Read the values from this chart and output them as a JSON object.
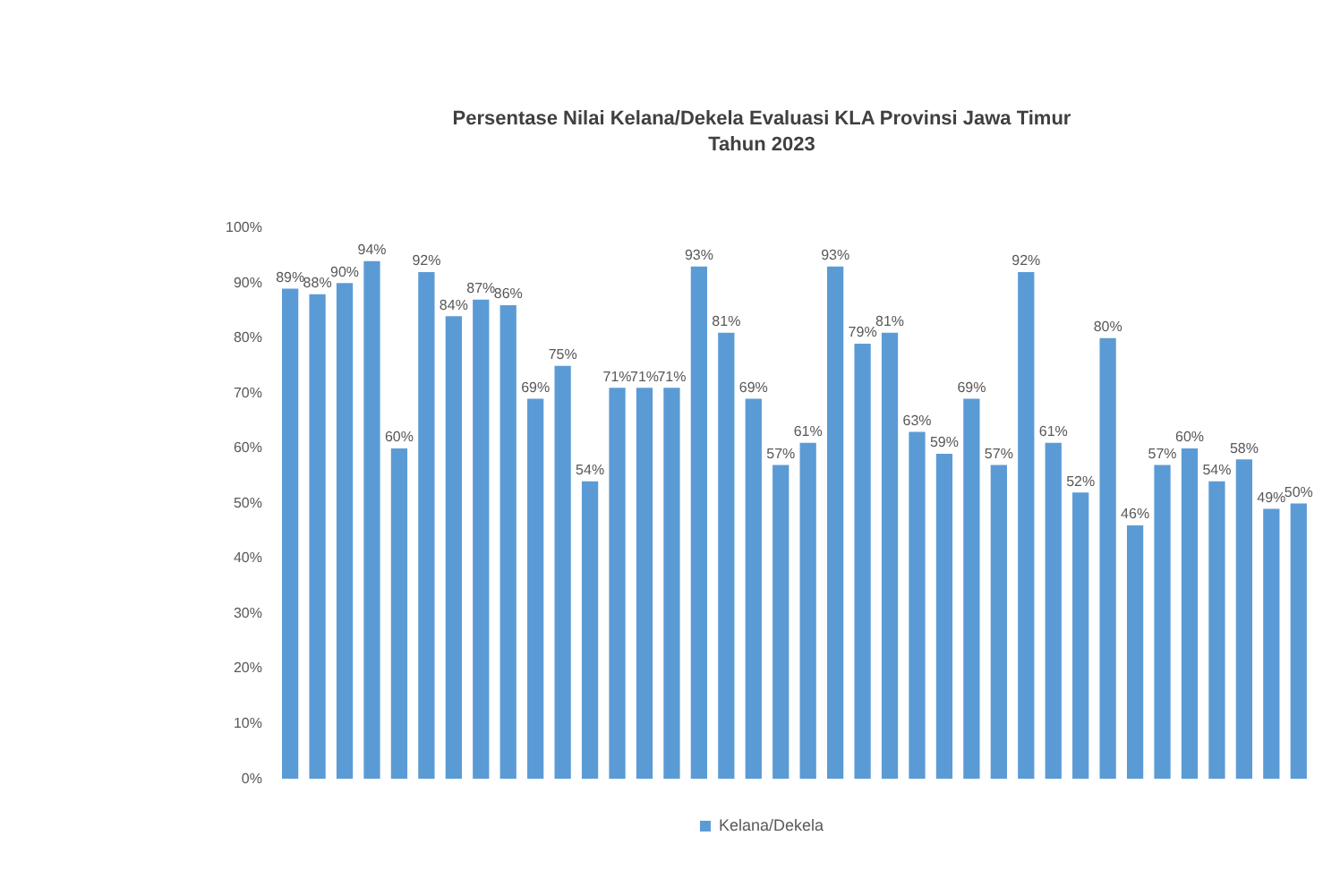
{
  "chart_data": {
    "type": "bar",
    "title": "Persentase Nilai Kelana/Dekela Evaluasi KLA Provinsi Jawa Timur",
    "subtitle": "Tahun 2023",
    "categories": [
      null,
      null,
      null,
      null,
      null,
      null,
      null,
      null,
      null,
      null,
      null,
      null,
      null,
      null,
      null,
      null,
      null,
      null,
      null,
      null,
      null,
      null,
      null,
      null,
      null,
      null,
      null,
      null,
      null,
      null,
      null,
      null,
      null,
      null,
      null,
      null,
      null,
      null
    ],
    "series": [
      {
        "name": "Kelana/Dekela",
        "color": "#5b9bd5",
        "values": [
          89,
          88,
          90,
          94,
          60,
          92,
          84,
          87,
          86,
          69,
          75,
          54,
          71,
          71,
          71,
          93,
          81,
          69,
          57,
          61,
          93,
          79,
          81,
          63,
          59,
          69,
          57,
          92,
          61,
          52,
          80,
          46,
          57,
          60,
          54,
          58,
          49,
          50
        ],
        "value_labels": [
          "89%",
          "88%",
          "90%",
          "94%",
          "60%",
          "92%",
          "84%",
          "87%",
          "86%",
          "69%",
          "75%",
          "54%",
          "71%",
          "71%",
          "71%",
          "93%",
          "81%",
          "69%",
          "57%",
          "61%",
          "93%",
          "79%",
          "81%",
          "63%",
          "59%",
          "69%",
          "57%",
          "92%",
          "61%",
          "52%",
          "80%",
          "46%",
          "57%",
          "60%",
          "54%",
          "58%",
          "49%",
          "50%"
        ]
      }
    ],
    "ylim": [
      0,
      100
    ],
    "yticks": [
      {
        "value": 0,
        "label": "0%"
      },
      {
        "value": 10,
        "label": "10%"
      },
      {
        "value": 20,
        "label": "20%"
      },
      {
        "value": 30,
        "label": "30%"
      },
      {
        "value": 40,
        "label": "40%"
      },
      {
        "value": 50,
        "label": "50%"
      },
      {
        "value": 60,
        "label": "60%"
      },
      {
        "value": 70,
        "label": "70%"
      },
      {
        "value": 80,
        "label": "80%"
      },
      {
        "value": 90,
        "label": "90%"
      },
      {
        "value": 100,
        "label": "100%"
      }
    ],
    "grid": false,
    "legend": "bottom"
  }
}
